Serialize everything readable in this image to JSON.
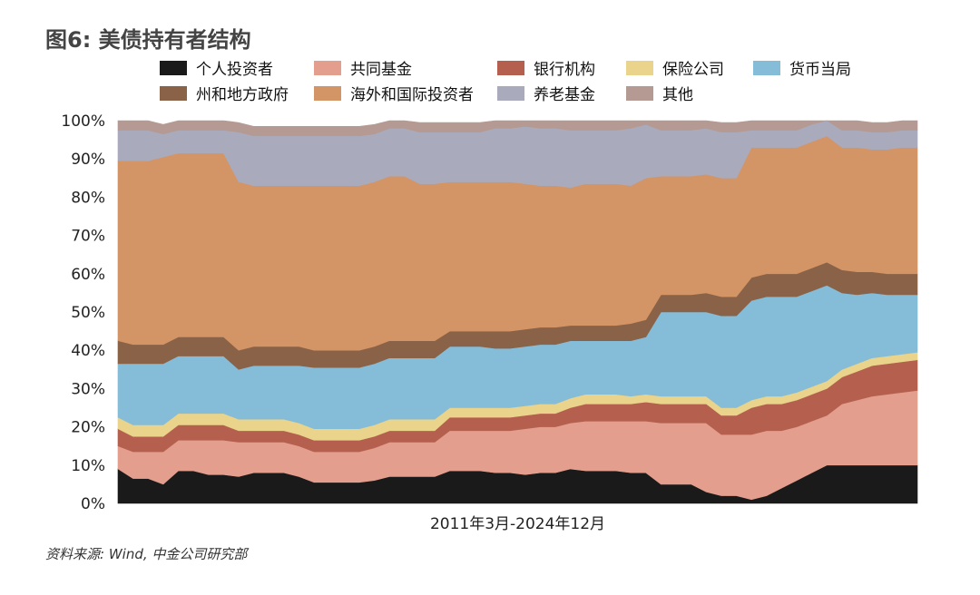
{
  "title": "图6: 美债持有者结构",
  "source": "资料来源: Wind, 中金公司研究部",
  "colors": {
    "个人投资者": "#1a1a1a",
    "共同基金": "#e39e8e",
    "银行机构": "#b5604f",
    "保险公司": "#ead38a",
    "货币当局": "#85bcd8",
    "州和地方政府": "#8a6247",
    "海外和国际投资者": "#d39466",
    "养老基金": "#a9abbd",
    "其他": "#b49a93"
  },
  "chart_data": {
    "type": "area",
    "stacked": true,
    "xlabel": "2011年3月-2024年12月",
    "ylim": [
      0,
      100
    ],
    "yticks": [
      "0%",
      "10%",
      "20%",
      "30%",
      "40%",
      "50%",
      "60%",
      "70%",
      "80%",
      "90%",
      "100%"
    ],
    "legend_position": "top",
    "x_start": "2011年3月",
    "x_end": "2024年12月",
    "series": [
      {
        "name": "个人投资者",
        "values": [
          9,
          6.5,
          6.5,
          5,
          8.5,
          8.5,
          7.5,
          7.5,
          7,
          8,
          8,
          8,
          7,
          5.5,
          5.5,
          5.5,
          5.5,
          6,
          7,
          7,
          7,
          7,
          8.5,
          8.5,
          8.5,
          8,
          8,
          7.5,
          8,
          8,
          9,
          8.5,
          8.5,
          8.5,
          8,
          8,
          5,
          5,
          5,
          3,
          2,
          2,
          1,
          2,
          4,
          6,
          8,
          10,
          10,
          10,
          10,
          10,
          10,
          10
        ]
      },
      {
        "name": "共同基金",
        "values": [
          6,
          7,
          7,
          8.5,
          8,
          8,
          9,
          9,
          9,
          8,
          8,
          8,
          8,
          8,
          8,
          8,
          8,
          8.5,
          9,
          9,
          9,
          9,
          10.5,
          10.5,
          10.5,
          11,
          11,
          12,
          12,
          12,
          12,
          13,
          13,
          13,
          13.5,
          13.5,
          16,
          16,
          16,
          18,
          16,
          16,
          17,
          17,
          15,
          14,
          13.5,
          13,
          16,
          17,
          18,
          18.5,
          19,
          19.5
        ]
      },
      {
        "name": "银行机构",
        "values": [
          4.5,
          4,
          4,
          4,
          4,
          4,
          4,
          4,
          3,
          3,
          3,
          3,
          3,
          3,
          3,
          3,
          3,
          3,
          3,
          3,
          3,
          3,
          3.5,
          3.5,
          3.5,
          3.5,
          3.5,
          3.5,
          3.5,
          3.5,
          4,
          4.5,
          4.5,
          4.5,
          4.5,
          5,
          5,
          5,
          5,
          5,
          5,
          5,
          7,
          7,
          7,
          7,
          7,
          7,
          7,
          7.5,
          8,
          8,
          8,
          8
        ]
      },
      {
        "name": "保险公司",
        "values": [
          3,
          3,
          3,
          3,
          3,
          3,
          3,
          3,
          3,
          3,
          3,
          3,
          3,
          3,
          3,
          3,
          3,
          3,
          3,
          3,
          3,
          3,
          2.5,
          2.5,
          2.5,
          2.5,
          2.5,
          2.5,
          2.5,
          2.5,
          2.5,
          2.5,
          2.5,
          2.5,
          2,
          2,
          2,
          2,
          2,
          2,
          2,
          2,
          2,
          2,
          2,
          2,
          2,
          2,
          2,
          2,
          2,
          2,
          2,
          2
        ]
      },
      {
        "name": "货币当局",
        "values": [
          14,
          16,
          16,
          16,
          15,
          15,
          15,
          15,
          13,
          14,
          14,
          14,
          15,
          16,
          16,
          16,
          16,
          16,
          16,
          16,
          16,
          16,
          16,
          16,
          16,
          15.5,
          15.5,
          15.5,
          15.5,
          15.5,
          15,
          14,
          14,
          14,
          14.5,
          15,
          22,
          22,
          22,
          22,
          24,
          24,
          26,
          26,
          26,
          25,
          25,
          25,
          20,
          18,
          17,
          16,
          15.5,
          15
        ]
      },
      {
        "name": "州和地方政府",
        "values": [
          6,
          5,
          5,
          5,
          5,
          5,
          5,
          5,
          5,
          5,
          5,
          5,
          5,
          4.5,
          4.5,
          4.5,
          4.5,
          4.5,
          4.5,
          4.5,
          4.5,
          4.5,
          4,
          4,
          4,
          4.5,
          4.5,
          4.5,
          4.5,
          4.5,
          4,
          4,
          4,
          4,
          4.5,
          4.5,
          4.5,
          4.5,
          4.5,
          5,
          5,
          5,
          6,
          6,
          6,
          6,
          6,
          6,
          6,
          6,
          5.5,
          5.5,
          5.5,
          5.5
        ]
      },
      {
        "name": "海外和国际投资者",
        "values": [
          47,
          48,
          48,
          49,
          48,
          48,
          48,
          48,
          44,
          42,
          42,
          42,
          42,
          43,
          43,
          43,
          43,
          43,
          43,
          43,
          41,
          41,
          39,
          39,
          39,
          39,
          39,
          38,
          37,
          37,
          36,
          37,
          37,
          37,
          36,
          37,
          31,
          31,
          31,
          31,
          31,
          31,
          34,
          33,
          33,
          33,
          33,
          33,
          32,
          32.5,
          32,
          32.5,
          33,
          33
        ]
      },
      {
        "name": "养老基金",
        "values": [
          8,
          8,
          8,
          6,
          6,
          6,
          6,
          6,
          13,
          13,
          13,
          13,
          13,
          13,
          13,
          13,
          13,
          12.5,
          12.5,
          12.5,
          13.5,
          13.5,
          13,
          13,
          13,
          14,
          14,
          15,
          15,
          15,
          15,
          14,
          14,
          14,
          15,
          14,
          12,
          12,
          12,
          12,
          12,
          12,
          4.5,
          4.5,
          4.5,
          4.5,
          4.5,
          4.5,
          4.5,
          4.5,
          4.5,
          4.5,
          4.5,
          4.5
        ]
      },
      {
        "name": "其他",
        "values": [
          2.5,
          2.5,
          2.5,
          2.5,
          2.5,
          2.5,
          2.5,
          2.5,
          2.5,
          2.5,
          2.5,
          2.5,
          2.5,
          2.5,
          2.5,
          2.5,
          2.5,
          2.5,
          2.5,
          2.5,
          2.5,
          2.5,
          2.5,
          2.5,
          2.5,
          2.5,
          2.5,
          2.5,
          2.5,
          2.5,
          2.5,
          2.5,
          2.5,
          2.5,
          2.5,
          2.5,
          2.5,
          2.5,
          2.5,
          2.5,
          2.5,
          2.5,
          2.5,
          2.5,
          2.5,
          2.5,
          2.5,
          2.5,
          2.5,
          2.5,
          2.5,
          2.5,
          2.5,
          2.5
        ]
      }
    ]
  }
}
